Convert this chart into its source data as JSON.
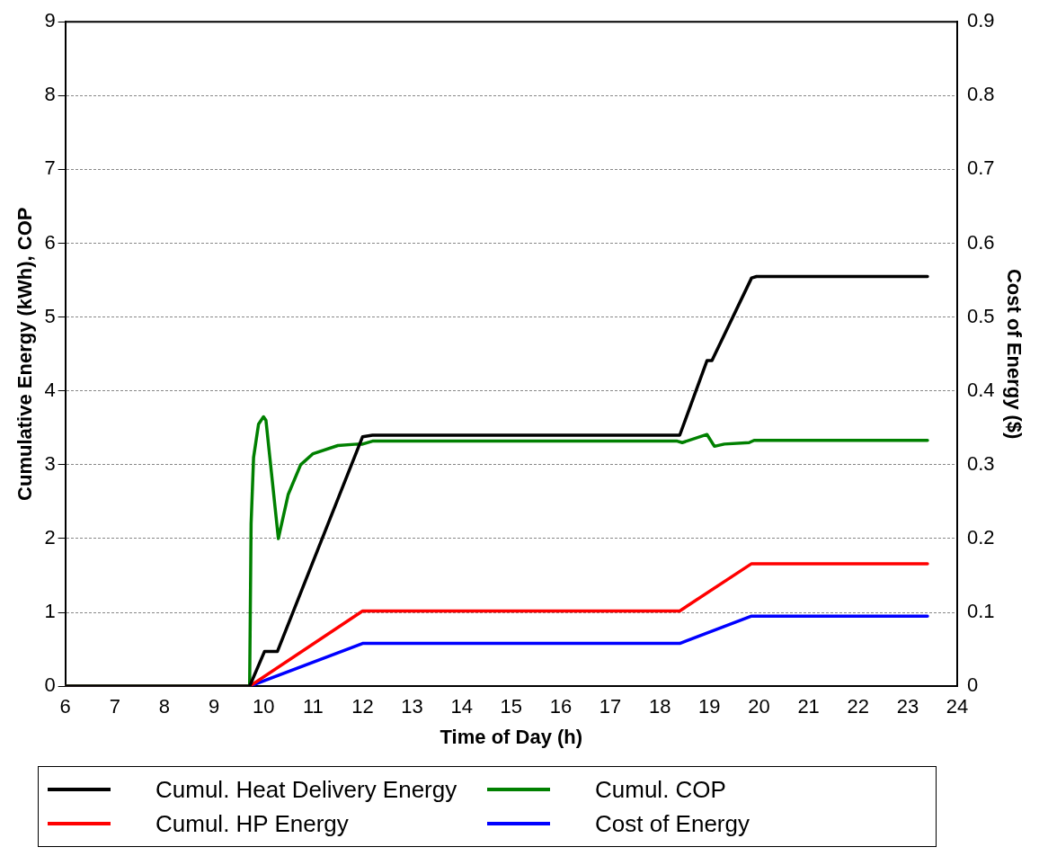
{
  "chart_data": {
    "type": "line",
    "xlabel": "Time of Day (h)",
    "ylabel": "Cumulative Energy (kWh), COP",
    "y2label": "Cost of Energy ($)",
    "xlim": [
      6,
      24
    ],
    "xticks": [
      6,
      7,
      8,
      9,
      10,
      11,
      12,
      13,
      14,
      15,
      16,
      17,
      18,
      19,
      20,
      21,
      22,
      23,
      24
    ],
    "ylim": [
      0,
      9
    ],
    "yticks": [
      0,
      1,
      2,
      3,
      4,
      5,
      6,
      7,
      8,
      9
    ],
    "y2lim": [
      0,
      0.9
    ],
    "y2ticks": [
      0,
      0.1,
      0.2,
      0.3,
      0.4,
      0.5,
      0.6,
      0.7,
      0.8,
      0.9
    ],
    "grid": "y",
    "legend": "bottom",
    "marker": "none",
    "line_style": "solid",
    "series": [
      {
        "name": "Cumul. Heat Delivery Energy",
        "color": "#000000",
        "x": [
          6,
          9.72,
          10.02,
          10.28,
          12.0,
          12.2,
          18.4,
          18.95,
          19.05,
          19.85,
          19.95,
          23.4
        ],
        "values": [
          0,
          0,
          0.47,
          0.47,
          3.38,
          3.4,
          3.4,
          4.41,
          4.41,
          5.53,
          5.55,
          5.55
        ]
      },
      {
        "name": "Cumul. COP",
        "color": "#008000",
        "x": [
          6,
          9.72,
          9.75,
          9.8,
          9.9,
          10.0,
          10.05,
          10.3,
          10.5,
          10.75,
          11.0,
          11.5,
          11.9,
          12.0,
          12.2,
          18.35,
          18.45,
          18.95,
          19.1,
          19.3,
          19.8,
          19.9,
          23.4
        ],
        "values": [
          0,
          0,
          2.2,
          3.1,
          3.55,
          3.65,
          3.6,
          2.0,
          2.6,
          3.0,
          3.15,
          3.26,
          3.28,
          3.28,
          3.32,
          3.32,
          3.3,
          3.41,
          3.25,
          3.28,
          3.3,
          3.33,
          3.33
        ]
      },
      {
        "name": "Cumul. HP Energy",
        "color": "#ff0000",
        "x": [
          6,
          9.72,
          12.0,
          18.4,
          19.85,
          23.4
        ],
        "values": [
          0,
          0,
          1.02,
          1.02,
          1.66,
          1.66
        ]
      },
      {
        "name": "Cost of Energy",
        "color": "#0000ff",
        "axis": "y2",
        "x": [
          6,
          9.72,
          12.0,
          18.4,
          19.85,
          23.4
        ],
        "values": [
          0,
          0,
          0.058,
          0.058,
          0.095,
          0.095
        ]
      }
    ]
  }
}
